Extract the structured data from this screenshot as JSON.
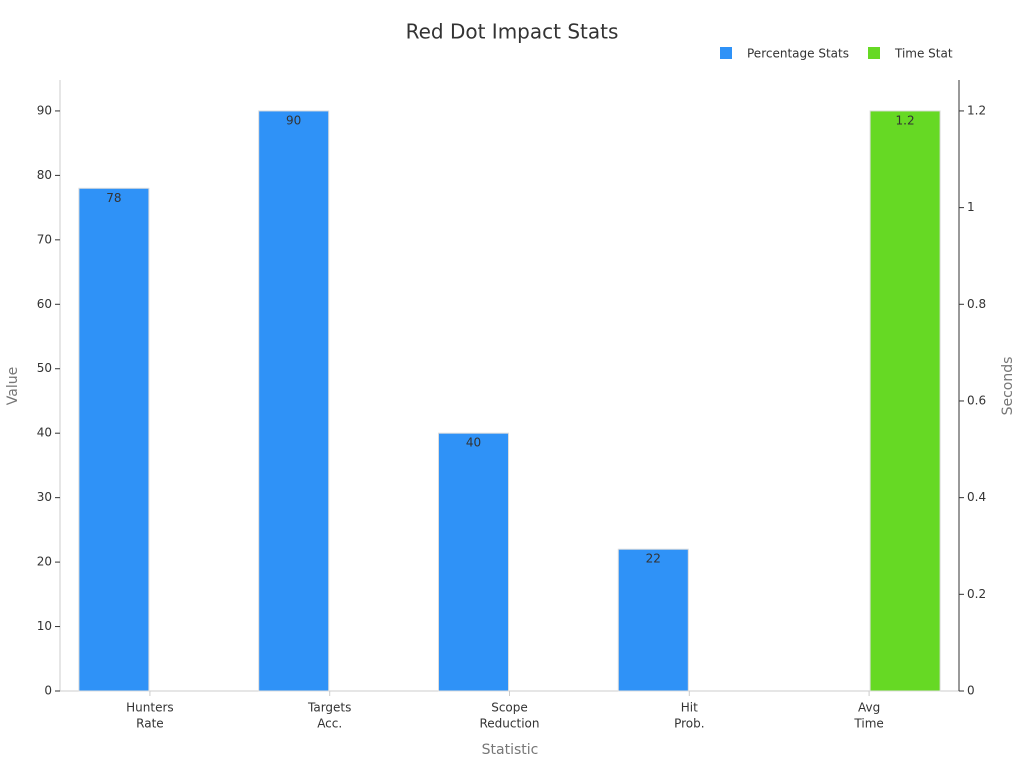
{
  "chart_data": {
    "type": "bar",
    "title": "Red Dot Impact Stats",
    "x_label": "Statistic",
    "y_label": "Value",
    "y2_label": "Seconds",
    "categories": [
      [
        "Hunters",
        "Rate"
      ],
      [
        "Targets",
        "Acc."
      ],
      [
        "Scope",
        "Reduction"
      ],
      [
        "Hit",
        "Prob."
      ],
      [
        "Avg",
        "Time"
      ]
    ],
    "series": [
      {
        "name": "Percentage Stats",
        "color": "#2f92f7",
        "values": [
          78,
          90,
          40,
          22,
          null
        ]
      },
      {
        "name": "Time Stat",
        "color": "#66d924",
        "axis": "y2",
        "values": [
          null,
          null,
          null,
          null,
          1.2
        ]
      }
    ],
    "ylim": [
      0,
      94.8
    ],
    "yticks": [
      0,
      10,
      20,
      30,
      40,
      50,
      60,
      70,
      80,
      90
    ],
    "y2lim": [
      0,
      1.264
    ],
    "y2ticks": [
      0,
      0.2,
      0.4,
      0.6,
      0.8,
      1,
      1.2
    ],
    "legend": "top-right",
    "grid": false
  }
}
